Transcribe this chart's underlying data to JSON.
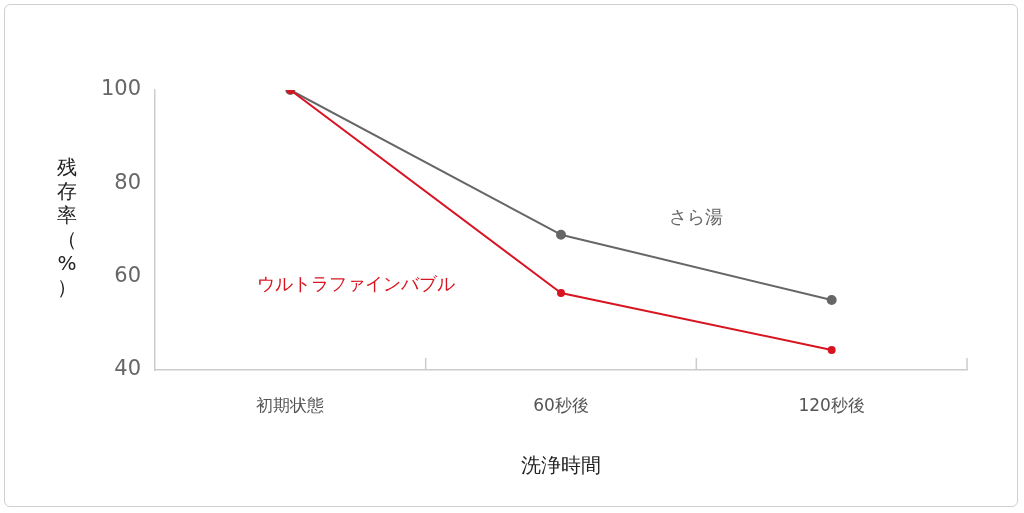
{
  "chart_data": {
    "type": "line",
    "xlabel": "洗浄時間",
    "ylabel": "残存率（%）",
    "categories": [
      "初期状態",
      "60秒後",
      "120秒後"
    ],
    "series": [
      {
        "name": "さら湯",
        "color": "#666666",
        "values": [
          100,
          69,
          55
        ]
      },
      {
        "name": "ウルトラファインバブル",
        "color": "#d7141f",
        "values": [
          100,
          56.5,
          44.3
        ]
      }
    ],
    "ylim": [
      40,
      100
    ],
    "yticks": [
      40,
      60,
      80,
      100
    ],
    "grid": false,
    "legend": false,
    "marker": "circle",
    "line_style": "solid"
  }
}
